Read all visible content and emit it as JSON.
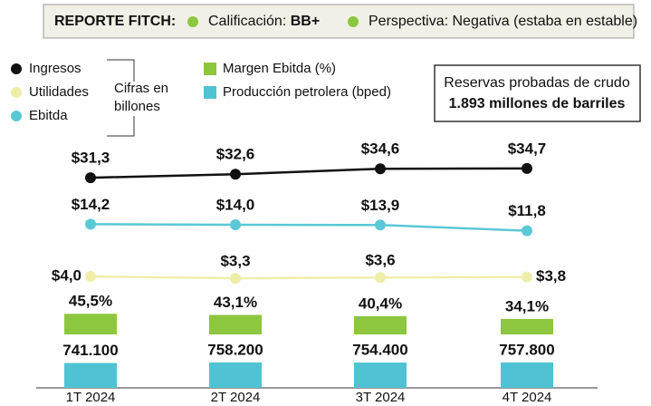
{
  "header": {
    "title": "REPORTE FITCH:",
    "items": [
      {
        "label": "Calificación: ",
        "value": "BB+"
      },
      {
        "label": "Perspectiva: Negativa (estaba en estable)"
      }
    ]
  },
  "note": [
    "Cifras en",
    "billones"
  ],
  "box": {
    "title": "Reservas probadas de crudo",
    "value": "1.893 millones de barriles"
  },
  "chart_data": {
    "type": "combo",
    "categories": [
      "1T 2024",
      "2T 2024",
      "3T 2024",
      "4T 2024"
    ],
    "series": [
      {
        "name": "Ingresos",
        "type": "line",
        "color": "#111111",
        "values": [
          31.3,
          32.6,
          34.6,
          34.7
        ],
        "value_labels": [
          "$31,3",
          "$32,6",
          "$34,6",
          "$34,7"
        ]
      },
      {
        "name": "Utilidades",
        "type": "line",
        "color": "#eeeeaa",
        "values": [
          4.0,
          3.3,
          3.6,
          3.8
        ],
        "value_labels": [
          "$4,0",
          "$3,3",
          "$3,6",
          "$3,8"
        ]
      },
      {
        "name": "Ebitda",
        "type": "line",
        "color": "#5bc8d6",
        "values": [
          14.2,
          14.0,
          13.9,
          11.8
        ],
        "value_labels": [
          "$14,2",
          "$14,0",
          "$13,9",
          "$11,8"
        ]
      },
      {
        "name": "Margen Ebitda (%)",
        "type": "bar",
        "color": "#8dc63f",
        "values": [
          45.5,
          43.1,
          40.4,
          34.1
        ],
        "value_labels": [
          "45,5%",
          "43,1%",
          "40,4%",
          "34,1%"
        ]
      },
      {
        "name": "Producción petrolera (bped)",
        "type": "bar",
        "color": "#4fc3d3",
        "values": [
          741100,
          758200,
          754400,
          757800
        ],
        "value_labels": [
          "741.100",
          "758.200",
          "754.400",
          "757.800"
        ]
      }
    ]
  }
}
